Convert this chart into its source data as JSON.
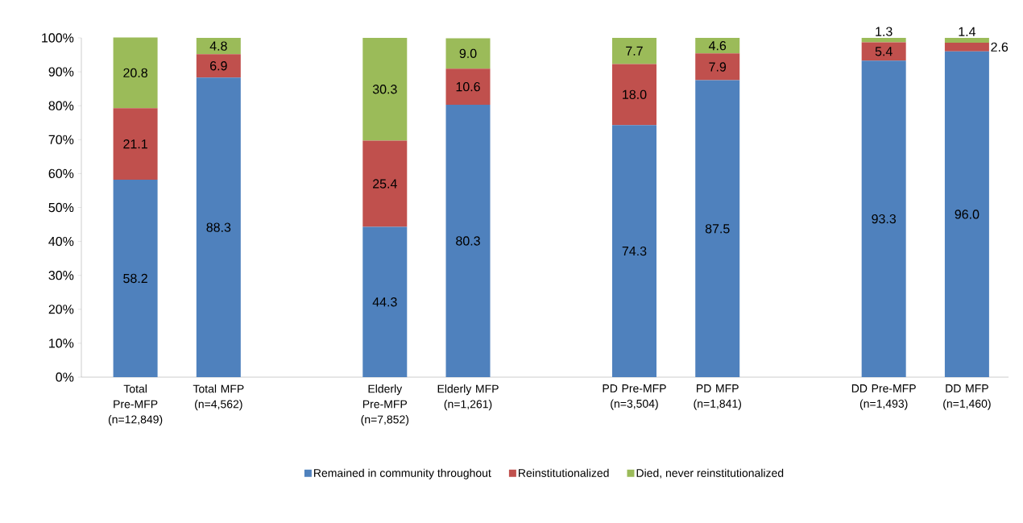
{
  "chart_data": {
    "type": "bar",
    "stacked": true,
    "categories": [
      "Total Pre-MFP (n=12,849)",
      "Total MFP (n=4,562)",
      null,
      "Elderly Pre-MFP (n=7,852)",
      "Elderly MFP (n=1,261)",
      null,
      "PD Pre-MFP (n=3,504)",
      "PD MFP (n=1,841)",
      null,
      "DD Pre-MFP (n=1,493)",
      "DD MFP (n=1,460)"
    ],
    "series": [
      {
        "name": "Remained in community throughout",
        "color": "#4f81bd",
        "values": [
          58.2,
          88.3,
          null,
          44.3,
          80.3,
          null,
          74.3,
          87.5,
          null,
          93.3,
          96.0
        ],
        "value_labels": [
          "58.2",
          "88.3",
          null,
          "44.3",
          "80.3",
          null,
          "74.3",
          "87.5",
          null,
          "93.3",
          "96.0"
        ]
      },
      {
        "name": "Reinstitutionalized",
        "color": "#c0504d",
        "values": [
          21.1,
          6.9,
          null,
          25.4,
          10.6,
          null,
          18.0,
          7.9,
          null,
          5.4,
          2.6
        ],
        "value_labels": [
          "21.1",
          "6.9",
          null,
          "25.4",
          "10.6",
          null,
          "18.0",
          "7.9",
          null,
          "5.4",
          "2.6"
        ]
      },
      {
        "name": "Died, never reinstitutionalized",
        "color": "#9bbb59",
        "values": [
          20.8,
          4.8,
          null,
          30.3,
          9.0,
          null,
          7.7,
          4.6,
          null,
          1.3,
          1.4
        ],
        "value_labels": [
          "20.8",
          "4.8",
          null,
          "30.3",
          "9.0",
          null,
          "7.7",
          "4.6",
          null,
          "1.3",
          "1.4"
        ]
      }
    ],
    "ylim": [
      0,
      100
    ],
    "yticks": [
      {
        "value": 0,
        "label": "0%"
      },
      {
        "value": 10,
        "label": "10%"
      },
      {
        "value": 20,
        "label": "20%"
      },
      {
        "value": 30,
        "label": "30%"
      },
      {
        "value": 40,
        "label": "40%"
      },
      {
        "value": 50,
        "label": "50%"
      },
      {
        "value": 60,
        "label": "60%"
      },
      {
        "value": 70,
        "label": "70%"
      },
      {
        "value": 80,
        "label": "80%"
      },
      {
        "value": 90,
        "label": "90%"
      },
      {
        "value": 100,
        "label": "100%"
      }
    ],
    "legend": "bottom",
    "grid": false
  }
}
